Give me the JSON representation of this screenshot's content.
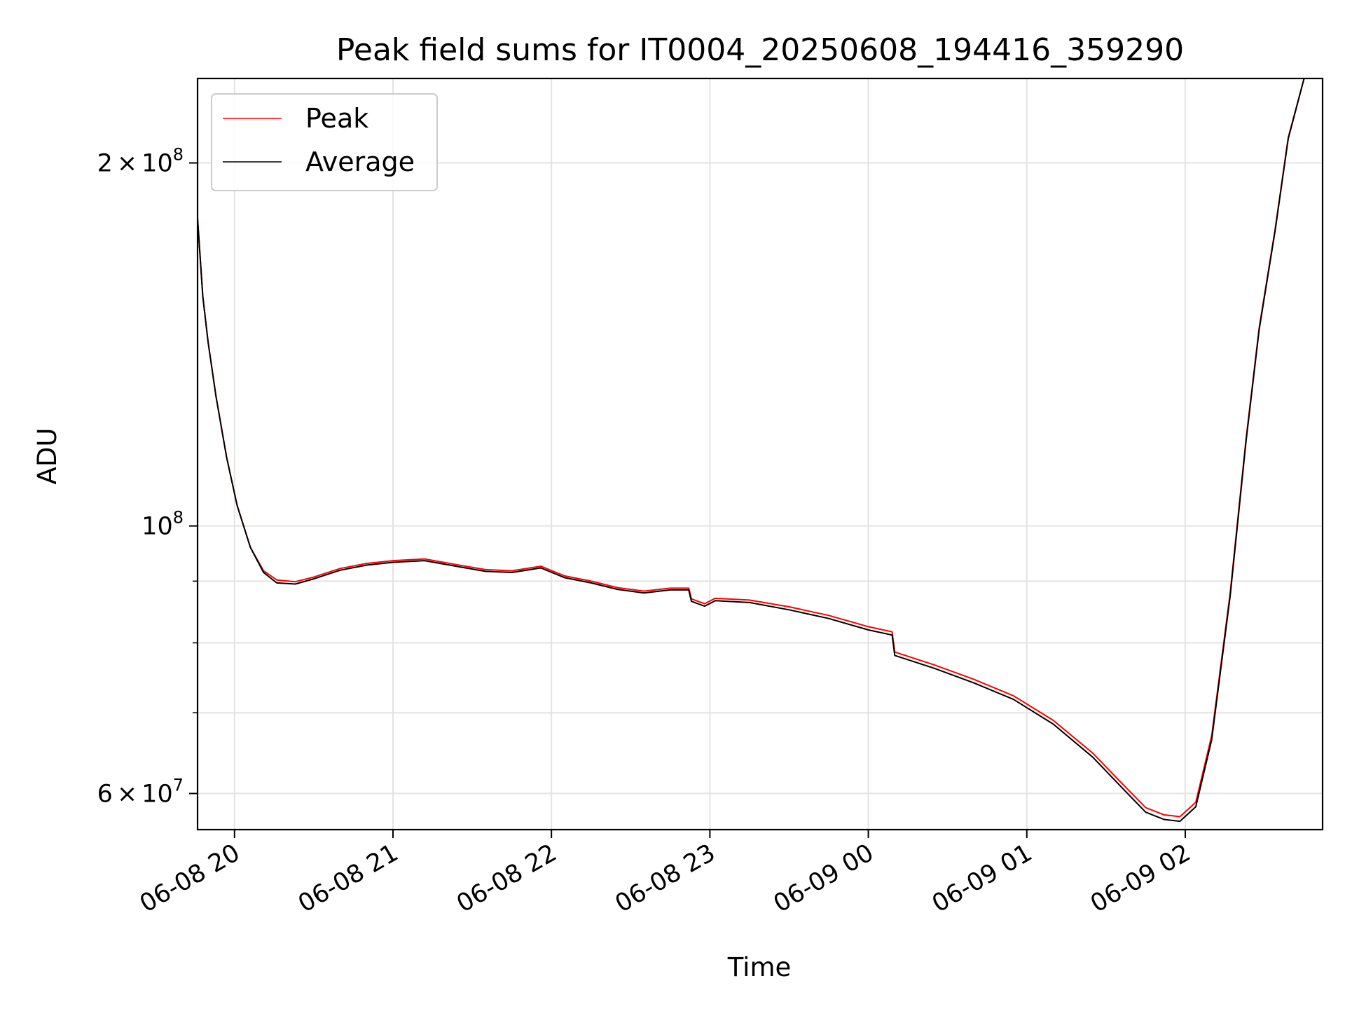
{
  "chart_data": {
    "type": "line",
    "title": "Peak field sums for IT0004_20250608_194416_359290",
    "xlabel": "Time",
    "ylabel": "ADU",
    "y_scale": "log",
    "grid": true,
    "legend_position": "top-left",
    "xlim": [
      "2025-06-08 19:46",
      "2025-06-09 02:52"
    ],
    "ylim": [
      56000000,
      235000000
    ],
    "x_ticks": [
      {
        "value": "2025-06-08 20:00",
        "label": "06-08 20"
      },
      {
        "value": "2025-06-08 21:00",
        "label": "06-08 21"
      },
      {
        "value": "2025-06-08 22:00",
        "label": "06-08 22"
      },
      {
        "value": "2025-06-08 23:00",
        "label": "06-08 23"
      },
      {
        "value": "2025-06-09 00:00",
        "label": "06-09 00"
      },
      {
        "value": "2025-06-09 01:00",
        "label": "06-09 01"
      },
      {
        "value": "2025-06-09 02:00",
        "label": "06-09 02"
      }
    ],
    "y_ticks": [
      {
        "value": 60000000,
        "base": "6",
        "exp": "7"
      },
      {
        "value": 100000000,
        "base": "",
        "exp": "8"
      },
      {
        "value": 200000000,
        "base": "2",
        "exp": "8"
      }
    ],
    "y_minor_ticks": [
      70000000,
      80000000,
      90000000
    ],
    "series": [
      {
        "name": "Peak",
        "color": "#ff0000",
        "x": [
          "2025-06-08 19:46",
          "2025-06-08 19:48",
          "2025-06-08 19:50",
          "2025-06-08 19:53",
          "2025-06-08 19:57",
          "2025-06-08 20:01",
          "2025-06-08 20:06",
          "2025-06-08 20:11",
          "2025-06-08 20:16",
          "2025-06-08 20:23",
          "2025-06-08 20:30",
          "2025-06-08 20:40",
          "2025-06-08 20:50",
          "2025-06-08 21:00",
          "2025-06-08 21:12",
          "2025-06-08 21:25",
          "2025-06-08 21:35",
          "2025-06-08 21:45",
          "2025-06-08 21:56",
          "2025-06-08 22:05",
          "2025-06-08 22:15",
          "2025-06-08 22:25",
          "2025-06-08 22:35",
          "2025-06-08 22:45",
          "2025-06-08 22:52",
          "2025-06-08 22:53",
          "2025-06-08 22:58",
          "2025-06-08 23:02",
          "2025-06-08 23:15",
          "2025-06-08 23:30",
          "2025-06-08 23:45",
          "2025-06-09 00:00",
          "2025-06-09 00:09",
          "2025-06-09 00:10",
          "2025-06-09 00:25",
          "2025-06-09 00:40",
          "2025-06-09 00:55",
          "2025-06-09 01:10",
          "2025-06-09 01:25",
          "2025-06-09 01:35",
          "2025-06-09 01:45",
          "2025-06-09 01:52",
          "2025-06-09 01:58",
          "2025-06-09 02:04",
          "2025-06-09 02:10",
          "2025-06-09 02:17",
          "2025-06-09 02:23",
          "2025-06-09 02:28",
          "2025-06-09 02:34",
          "2025-06-09 02:39",
          "2025-06-09 02:45"
        ],
        "y": [
          180000000,
          155000000,
          142000000,
          128000000,
          114000000,
          104000000,
          96000000,
          91800000,
          90200000,
          89900000,
          90700000,
          92200000,
          93100000,
          93600000,
          93900000,
          92800000,
          92000000,
          91800000,
          92600000,
          90900000,
          90000000,
          88900000,
          88300000,
          88800000,
          88800000,
          87000000,
          86200000,
          87100000,
          86800000,
          85700000,
          84300000,
          82500000,
          81700000,
          78600000,
          76700000,
          74600000,
          72300000,
          69000000,
          64800000,
          61500000,
          58400000,
          57600000,
          57400000,
          59000000,
          67000000,
          88000000,
          118000000,
          146000000,
          176000000,
          210000000,
          235000000
        ]
      },
      {
        "name": "Average",
        "color": "#000000",
        "x": [
          "2025-06-08 19:46",
          "2025-06-08 19:48",
          "2025-06-08 19:50",
          "2025-06-08 19:53",
          "2025-06-08 19:57",
          "2025-06-08 20:01",
          "2025-06-08 20:06",
          "2025-06-08 20:11",
          "2025-06-08 20:16",
          "2025-06-08 20:23",
          "2025-06-08 20:30",
          "2025-06-08 20:40",
          "2025-06-08 20:50",
          "2025-06-08 21:00",
          "2025-06-08 21:12",
          "2025-06-08 21:25",
          "2025-06-08 21:35",
          "2025-06-08 21:45",
          "2025-06-08 21:56",
          "2025-06-08 22:05",
          "2025-06-08 22:15",
          "2025-06-08 22:25",
          "2025-06-08 22:35",
          "2025-06-08 22:45",
          "2025-06-08 22:52",
          "2025-06-08 22:53",
          "2025-06-08 22:58",
          "2025-06-08 23:02",
          "2025-06-08 23:15",
          "2025-06-08 23:30",
          "2025-06-08 23:45",
          "2025-06-09 00:00",
          "2025-06-09 00:09",
          "2025-06-09 00:10",
          "2025-06-09 00:25",
          "2025-06-09 00:40",
          "2025-06-09 00:55",
          "2025-06-09 01:10",
          "2025-06-09 01:25",
          "2025-06-09 01:35",
          "2025-06-09 01:45",
          "2025-06-09 01:52",
          "2025-06-09 01:58",
          "2025-06-09 02:04",
          "2025-06-09 02:10",
          "2025-06-09 02:17",
          "2025-06-09 02:23",
          "2025-06-09 02:28",
          "2025-06-09 02:34",
          "2025-06-09 02:39",
          "2025-06-09 02:45"
        ],
        "y": [
          180000000,
          155000000,
          142000000,
          128000000,
          114000000,
          104000000,
          96000000,
          91500000,
          89700000,
          89500000,
          90400000,
          91900000,
          92800000,
          93300000,
          93600000,
          92500000,
          91700000,
          91500000,
          92300000,
          90600000,
          89700000,
          88600000,
          88000000,
          88500000,
          88500000,
          86600000,
          85800000,
          86700000,
          86400000,
          85200000,
          83800000,
          82000000,
          81200000,
          78100000,
          76200000,
          74100000,
          71800000,
          68500000,
          64300000,
          61000000,
          57900000,
          57100000,
          56900000,
          58500000,
          66500000,
          87500000,
          117500000,
          145500000,
          175500000,
          209500000,
          235000000
        ]
      }
    ]
  }
}
